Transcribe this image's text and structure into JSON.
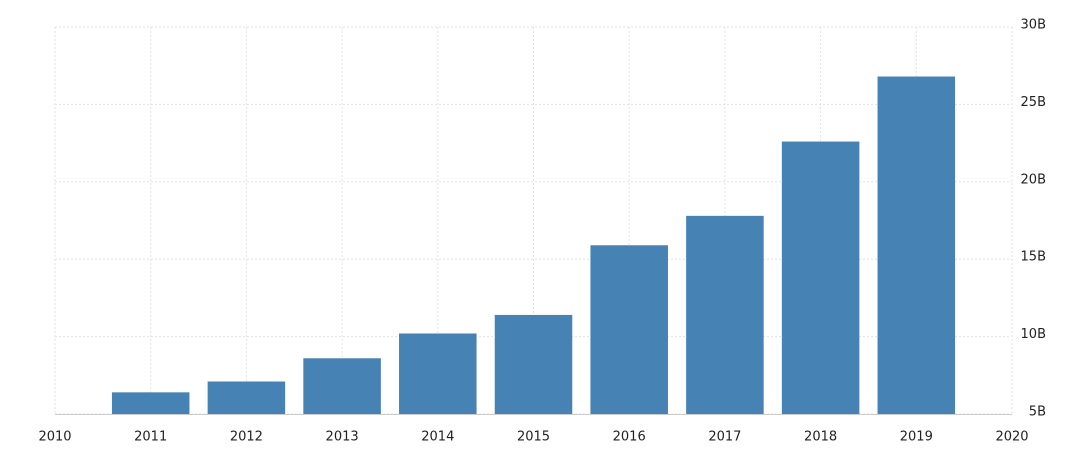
{
  "chart_data": {
    "type": "bar",
    "x": [
      2011,
      2012,
      2013,
      2014,
      2015,
      2016,
      2017,
      2018,
      2019
    ],
    "values": [
      6.4,
      7.1,
      8.6,
      10.2,
      11.4,
      15.9,
      17.8,
      22.6,
      26.8
    ],
    "color": "#4682b4",
    "xlim": [
      2010,
      2020
    ],
    "xticks": [
      2010,
      2011,
      2012,
      2013,
      2014,
      2015,
      2016,
      2017,
      2018,
      2019,
      2020
    ],
    "ylim": [
      5,
      30
    ],
    "yticks": [
      {
        "value": 5,
        "label": "5B"
      },
      {
        "value": 10,
        "label": "10B"
      },
      {
        "value": 15,
        "label": "15B"
      },
      {
        "value": 20,
        "label": "20B"
      },
      {
        "value": 25,
        "label": "25B"
      },
      {
        "value": 30,
        "label": "30B"
      }
    ],
    "grid": true
  }
}
